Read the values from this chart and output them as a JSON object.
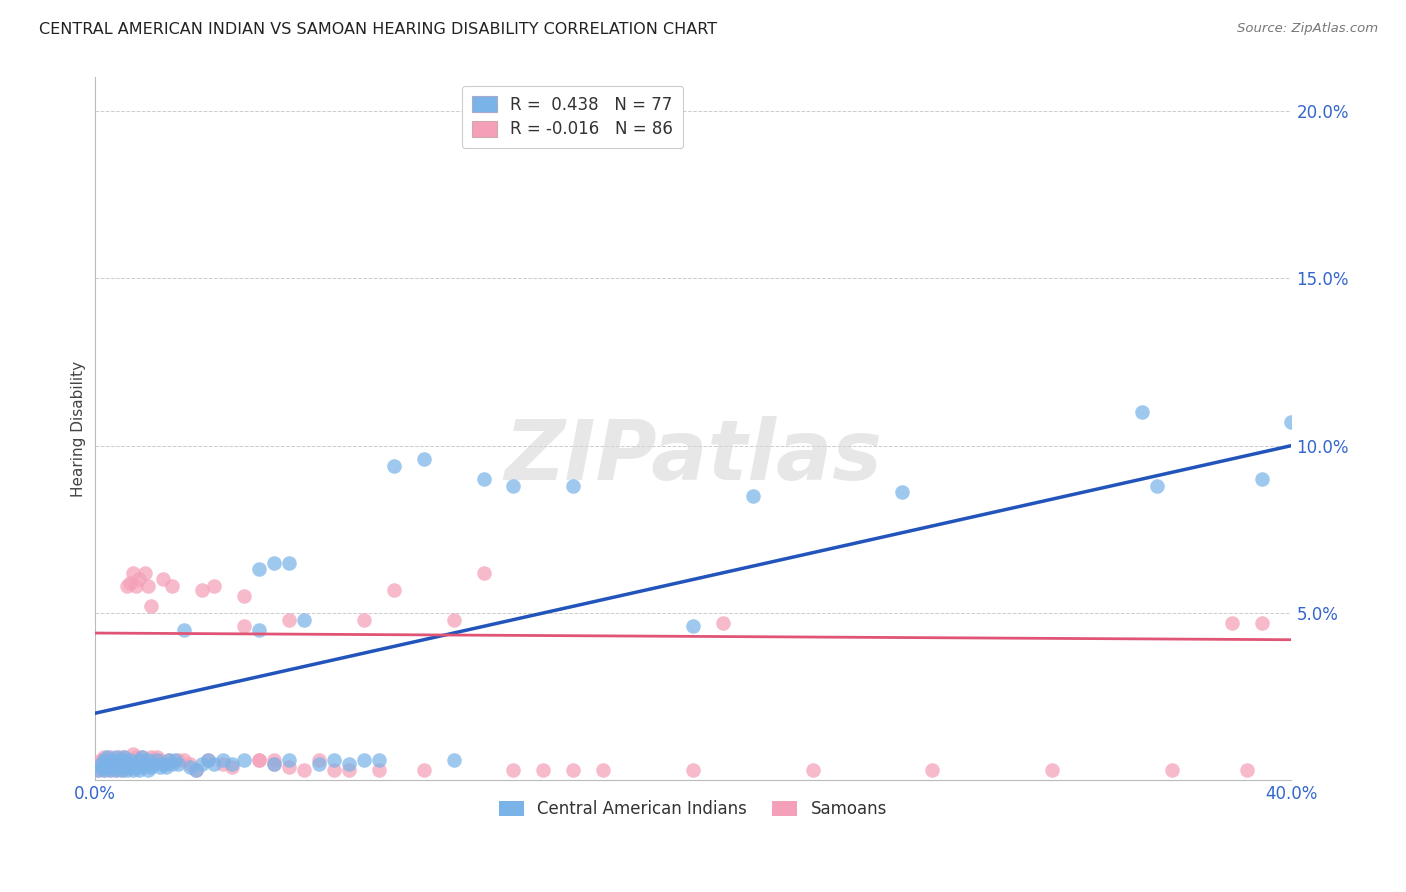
{
  "title": "CENTRAL AMERICAN INDIAN VS SAMOAN HEARING DISABILITY CORRELATION CHART",
  "source": "Source: ZipAtlas.com",
  "ylabel": "Hearing Disability",
  "xlim": [
    0.0,
    0.4
  ],
  "ylim": [
    0.0,
    0.21
  ],
  "xticks": [
    0.0,
    0.05,
    0.1,
    0.15,
    0.2,
    0.25,
    0.3,
    0.35,
    0.4
  ],
  "yticks": [
    0.0,
    0.05,
    0.1,
    0.15,
    0.2
  ],
  "xtick_labels": [
    "0.0%",
    "",
    "",
    "",
    "",
    "",
    "",
    "",
    "40.0%"
  ],
  "ytick_labels": [
    "",
    "5.0%",
    "10.0%",
    "15.0%",
    "20.0%"
  ],
  "legend_r1": "R =  0.438",
  "legend_n1": "N = 77",
  "legend_r2": "R = -0.016",
  "legend_n2": "N = 86",
  "blue_color": "#7ab3e8",
  "pink_color": "#f4a0b8",
  "line_blue": "#2255bb",
  "line_pink": "#e05575",
  "background": "#ffffff",
  "watermark": "ZIPatlas",
  "blue_x": [
    0.001,
    0.002,
    0.002,
    0.003,
    0.003,
    0.004,
    0.004,
    0.005,
    0.005,
    0.006,
    0.006,
    0.007,
    0.007,
    0.008,
    0.008,
    0.009,
    0.009,
    0.01,
    0.01,
    0.011,
    0.011,
    0.012,
    0.012,
    0.013,
    0.013,
    0.014,
    0.015,
    0.015,
    0.016,
    0.016,
    0.017,
    0.018,
    0.018,
    0.019,
    0.02,
    0.021,
    0.022,
    0.023,
    0.024,
    0.025,
    0.026,
    0.027,
    0.028,
    0.03,
    0.032,
    0.034,
    0.036,
    0.038,
    0.04,
    0.043,
    0.046,
    0.05,
    0.055,
    0.06,
    0.065,
    0.07,
    0.075,
    0.08,
    0.085,
    0.09,
    0.095,
    0.1,
    0.11,
    0.12,
    0.13,
    0.14,
    0.16,
    0.2,
    0.22,
    0.27,
    0.35,
    0.355,
    0.39,
    0.4,
    0.055,
    0.06,
    0.065
  ],
  "blue_y": [
    0.003,
    0.004,
    0.005,
    0.003,
    0.006,
    0.004,
    0.007,
    0.003,
    0.005,
    0.004,
    0.006,
    0.003,
    0.007,
    0.004,
    0.005,
    0.003,
    0.006,
    0.004,
    0.007,
    0.003,
    0.005,
    0.004,
    0.006,
    0.003,
    0.005,
    0.004,
    0.003,
    0.006,
    0.004,
    0.007,
    0.005,
    0.003,
    0.006,
    0.004,
    0.005,
    0.006,
    0.004,
    0.005,
    0.004,
    0.006,
    0.005,
    0.006,
    0.005,
    0.045,
    0.004,
    0.003,
    0.005,
    0.006,
    0.005,
    0.006,
    0.005,
    0.006,
    0.045,
    0.005,
    0.006,
    0.048,
    0.005,
    0.006,
    0.005,
    0.006,
    0.006,
    0.094,
    0.096,
    0.006,
    0.09,
    0.088,
    0.088,
    0.046,
    0.085,
    0.086,
    0.11,
    0.088,
    0.09,
    0.107,
    0.063,
    0.065,
    0.065
  ],
  "pink_x": [
    0.001,
    0.001,
    0.002,
    0.002,
    0.003,
    0.003,
    0.004,
    0.004,
    0.005,
    0.005,
    0.006,
    0.006,
    0.007,
    0.007,
    0.008,
    0.008,
    0.009,
    0.009,
    0.01,
    0.01,
    0.011,
    0.011,
    0.012,
    0.012,
    0.013,
    0.013,
    0.014,
    0.014,
    0.015,
    0.015,
    0.016,
    0.016,
    0.017,
    0.017,
    0.018,
    0.018,
    0.019,
    0.019,
    0.02,
    0.02,
    0.021,
    0.022,
    0.023,
    0.024,
    0.025,
    0.026,
    0.028,
    0.03,
    0.032,
    0.034,
    0.036,
    0.038,
    0.04,
    0.043,
    0.046,
    0.05,
    0.055,
    0.06,
    0.065,
    0.07,
    0.075,
    0.08,
    0.085,
    0.09,
    0.095,
    0.1,
    0.11,
    0.12,
    0.13,
    0.14,
    0.15,
    0.16,
    0.17,
    0.2,
    0.21,
    0.24,
    0.28,
    0.32,
    0.36,
    0.38,
    0.385,
    0.39,
    0.05,
    0.055,
    0.06,
    0.065
  ],
  "pink_y": [
    0.003,
    0.005,
    0.004,
    0.006,
    0.003,
    0.007,
    0.004,
    0.006,
    0.003,
    0.007,
    0.004,
    0.006,
    0.003,
    0.005,
    0.004,
    0.007,
    0.003,
    0.006,
    0.004,
    0.007,
    0.058,
    0.006,
    0.059,
    0.005,
    0.008,
    0.062,
    0.007,
    0.058,
    0.006,
    0.06,
    0.005,
    0.007,
    0.006,
    0.062,
    0.005,
    0.058,
    0.007,
    0.052,
    0.006,
    0.005,
    0.007,
    0.006,
    0.06,
    0.005,
    0.006,
    0.058,
    0.006,
    0.006,
    0.005,
    0.003,
    0.057,
    0.006,
    0.058,
    0.005,
    0.004,
    0.046,
    0.006,
    0.005,
    0.004,
    0.003,
    0.006,
    0.003,
    0.003,
    0.048,
    0.003,
    0.057,
    0.003,
    0.048,
    0.062,
    0.003,
    0.003,
    0.003,
    0.003,
    0.003,
    0.047,
    0.003,
    0.003,
    0.003,
    0.003,
    0.047,
    0.003,
    0.047,
    0.055,
    0.006,
    0.006,
    0.048
  ]
}
